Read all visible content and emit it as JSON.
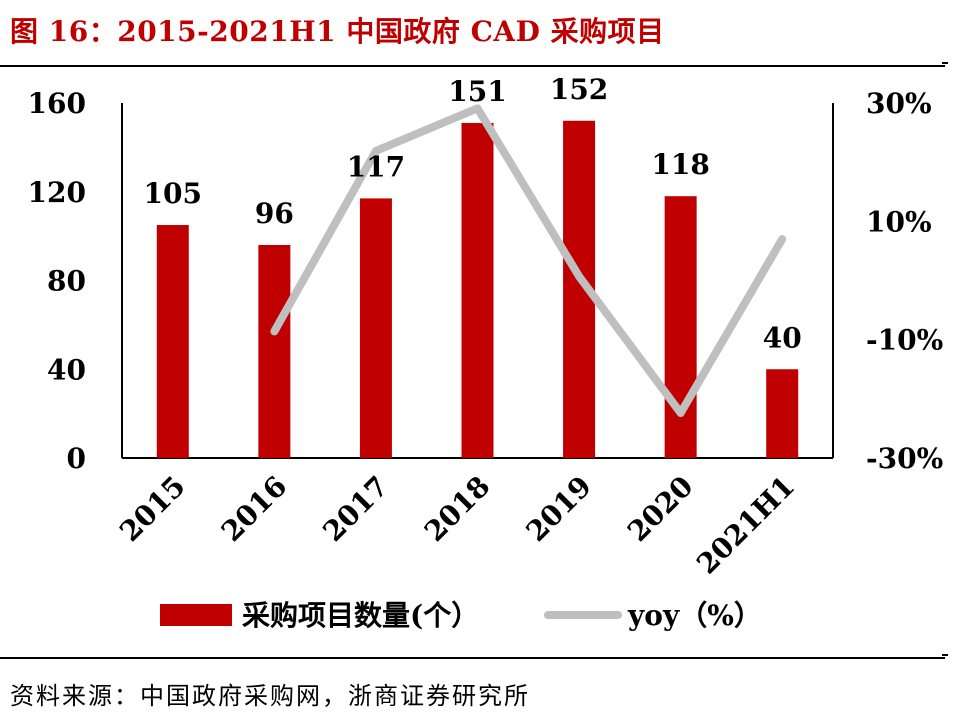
{
  "figure": {
    "title": "图 16：2015-2021H1 中国政府 CAD 采购项目",
    "source": "资料来源：中国政府采购网，浙商证券研究所"
  },
  "chart_data": {
    "type": "bar",
    "categories": [
      "2015",
      "2016",
      "2017",
      "2018",
      "2019",
      "2020",
      "2021H1"
    ],
    "series": [
      {
        "name": "采购项目数量(个）",
        "type": "bar",
        "axis": "left",
        "values": [
          105,
          96,
          117,
          151,
          152,
          118,
          40
        ],
        "color": "#c00000"
      },
      {
        "name": "yoy（%）",
        "type": "line",
        "axis": "right",
        "values": [
          null,
          -8.6,
          21.9,
          29.1,
          0.7,
          -22.4,
          7.0
        ],
        "color": "#bfbfbf"
      }
    ],
    "data_labels": [
      "105",
      "96",
      "117",
      "151",
      "152",
      "118",
      "40"
    ],
    "y_left": {
      "ylim": [
        0,
        160
      ],
      "ticks": [
        "0",
        "40",
        "80",
        "120",
        "160"
      ]
    },
    "y_right": {
      "ylim": [
        -30,
        30
      ],
      "ticks": [
        "-30%",
        "-10%",
        "10%",
        "30%"
      ]
    },
    "legend": {
      "position": "bottom"
    },
    "grid": false
  }
}
